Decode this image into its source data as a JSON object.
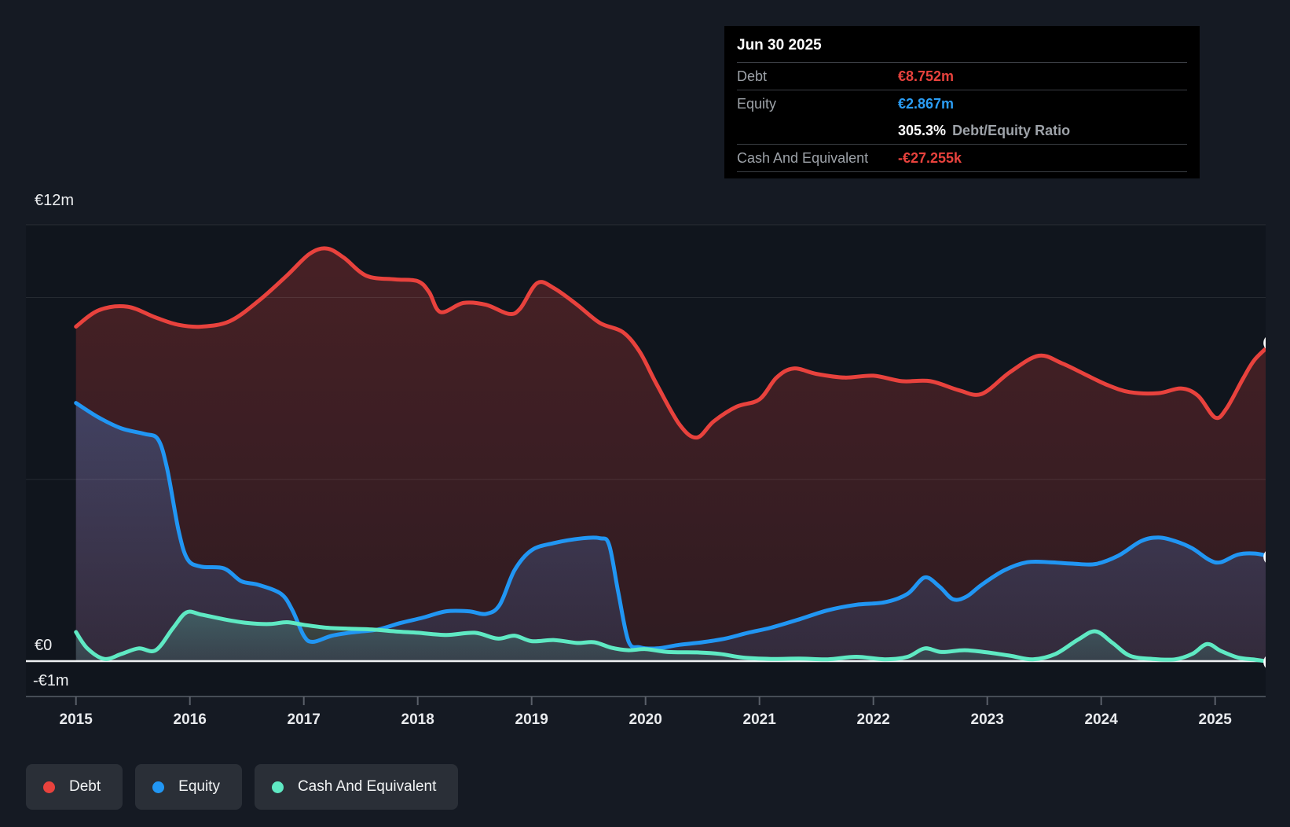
{
  "tooltip": {
    "date": "Jun 30 2025",
    "debt_label": "Debt",
    "debt_value": "€8.752m",
    "debt_color": "#e8423d",
    "equity_label": "Equity",
    "equity_value": "€2.867m",
    "equity_color": "#2b9df4",
    "ratio_value": "305.3%",
    "ratio_label": "Debt/Equity Ratio",
    "cash_label": "Cash And Equivalent",
    "cash_value": "-€27.255k",
    "cash_color": "#e8423d"
  },
  "legend": {
    "items": [
      {
        "label": "Debt",
        "color": "#e8423d"
      },
      {
        "label": "Equity",
        "color": "#2196f3"
      },
      {
        "label": "Cash And Equivalent",
        "color": "#5fe9c3"
      }
    ]
  },
  "x_axis": {
    "years": [
      "2015",
      "2016",
      "2017",
      "2018",
      "2019",
      "2020",
      "2021",
      "2022",
      "2023",
      "2024",
      "2025"
    ]
  },
  "chart_data": {
    "type": "area",
    "unit": "EUR millions",
    "x_range": [
      2015.0,
      2025.5
    ],
    "ylim": [
      -1,
      12
    ],
    "gridline_values": [
      12,
      10,
      5
    ],
    "zero_value": 0,
    "y_axis_labels": [
      {
        "text": "€12m",
        "value": 12
      },
      {
        "text": "€0",
        "value": 0
      },
      {
        "text": "-€1m",
        "value": -1
      }
    ],
    "legend_position": "bottom-left",
    "series": [
      {
        "id": "debt",
        "name": "Debt",
        "color": "#e8423d",
        "last_value_label": "€8.752m",
        "points": [
          [
            2015.0,
            9.2
          ],
          [
            2015.2,
            9.65
          ],
          [
            2015.45,
            9.75
          ],
          [
            2015.7,
            9.45
          ],
          [
            2015.9,
            9.25
          ],
          [
            2016.1,
            9.2
          ],
          [
            2016.35,
            9.35
          ],
          [
            2016.6,
            9.9
          ],
          [
            2016.85,
            10.6
          ],
          [
            2017.05,
            11.2
          ],
          [
            2017.2,
            11.35
          ],
          [
            2017.35,
            11.1
          ],
          [
            2017.55,
            10.6
          ],
          [
            2017.8,
            10.5
          ],
          [
            2018.0,
            10.45
          ],
          [
            2018.1,
            10.15
          ],
          [
            2018.2,
            9.6
          ],
          [
            2018.4,
            9.85
          ],
          [
            2018.6,
            9.8
          ],
          [
            2018.8,
            9.55
          ],
          [
            2018.9,
            9.7
          ],
          [
            2019.05,
            10.4
          ],
          [
            2019.2,
            10.25
          ],
          [
            2019.4,
            9.8
          ],
          [
            2019.6,
            9.3
          ],
          [
            2019.8,
            9.05
          ],
          [
            2019.95,
            8.5
          ],
          [
            2020.1,
            7.6
          ],
          [
            2020.3,
            6.5
          ],
          [
            2020.45,
            6.15
          ],
          [
            2020.6,
            6.6
          ],
          [
            2020.8,
            7.0
          ],
          [
            2021.0,
            7.2
          ],
          [
            2021.15,
            7.8
          ],
          [
            2021.3,
            8.05
          ],
          [
            2021.5,
            7.9
          ],
          [
            2021.75,
            7.8
          ],
          [
            2022.0,
            7.85
          ],
          [
            2022.25,
            7.7
          ],
          [
            2022.5,
            7.7
          ],
          [
            2022.75,
            7.45
          ],
          [
            2022.95,
            7.35
          ],
          [
            2023.2,
            7.95
          ],
          [
            2023.45,
            8.4
          ],
          [
            2023.65,
            8.2
          ],
          [
            2023.85,
            7.9
          ],
          [
            2024.05,
            7.6
          ],
          [
            2024.25,
            7.4
          ],
          [
            2024.5,
            7.37
          ],
          [
            2024.7,
            7.5
          ],
          [
            2024.85,
            7.3
          ],
          [
            2025.0,
            6.7
          ],
          [
            2025.1,
            6.95
          ],
          [
            2025.25,
            7.8
          ],
          [
            2025.35,
            8.3
          ],
          [
            2025.5,
            8.752
          ]
        ]
      },
      {
        "id": "equity",
        "name": "Equity",
        "color": "#2196f3",
        "last_value_label": "€2.867m",
        "points": [
          [
            2015.0,
            7.1
          ],
          [
            2015.2,
            6.7
          ],
          [
            2015.4,
            6.4
          ],
          [
            2015.6,
            6.25
          ],
          [
            2015.72,
            6.1
          ],
          [
            2015.8,
            5.3
          ],
          [
            2015.9,
            3.6
          ],
          [
            2015.98,
            2.8
          ],
          [
            2016.1,
            2.6
          ],
          [
            2016.3,
            2.55
          ],
          [
            2016.45,
            2.2
          ],
          [
            2016.6,
            2.1
          ],
          [
            2016.8,
            1.85
          ],
          [
            2016.9,
            1.4
          ],
          [
            2017.0,
            0.7
          ],
          [
            2017.08,
            0.53
          ],
          [
            2017.25,
            0.7
          ],
          [
            2017.45,
            0.8
          ],
          [
            2017.65,
            0.87
          ],
          [
            2017.85,
            1.05
          ],
          [
            2018.05,
            1.2
          ],
          [
            2018.25,
            1.37
          ],
          [
            2018.45,
            1.37
          ],
          [
            2018.6,
            1.3
          ],
          [
            2018.72,
            1.55
          ],
          [
            2018.85,
            2.5
          ],
          [
            2019.0,
            3.05
          ],
          [
            2019.2,
            3.25
          ],
          [
            2019.45,
            3.38
          ],
          [
            2019.6,
            3.38
          ],
          [
            2019.68,
            3.2
          ],
          [
            2019.76,
            1.9
          ],
          [
            2019.85,
            0.55
          ],
          [
            2019.95,
            0.38
          ],
          [
            2020.1,
            0.35
          ],
          [
            2020.3,
            0.45
          ],
          [
            2020.5,
            0.52
          ],
          [
            2020.7,
            0.62
          ],
          [
            2020.9,
            0.78
          ],
          [
            2021.1,
            0.92
          ],
          [
            2021.35,
            1.15
          ],
          [
            2021.6,
            1.4
          ],
          [
            2021.85,
            1.55
          ],
          [
            2022.1,
            1.62
          ],
          [
            2022.3,
            1.85
          ],
          [
            2022.45,
            2.3
          ],
          [
            2022.58,
            2.05
          ],
          [
            2022.7,
            1.7
          ],
          [
            2022.82,
            1.78
          ],
          [
            2022.95,
            2.1
          ],
          [
            2023.15,
            2.5
          ],
          [
            2023.35,
            2.72
          ],
          [
            2023.55,
            2.72
          ],
          [
            2023.75,
            2.68
          ],
          [
            2023.95,
            2.67
          ],
          [
            2024.15,
            2.9
          ],
          [
            2024.35,
            3.3
          ],
          [
            2024.5,
            3.4
          ],
          [
            2024.65,
            3.3
          ],
          [
            2024.8,
            3.1
          ],
          [
            2024.95,
            2.78
          ],
          [
            2025.05,
            2.72
          ],
          [
            2025.2,
            2.93
          ],
          [
            2025.35,
            2.96
          ],
          [
            2025.5,
            2.867
          ]
        ]
      },
      {
        "id": "cash",
        "name": "Cash And Equivalent",
        "color": "#5fe9c3",
        "last_value_label": "-€27.255k",
        "points": [
          [
            2015.0,
            0.8
          ],
          [
            2015.1,
            0.35
          ],
          [
            2015.25,
            0.06
          ],
          [
            2015.4,
            0.2
          ],
          [
            2015.55,
            0.35
          ],
          [
            2015.7,
            0.3
          ],
          [
            2015.85,
            0.9
          ],
          [
            2015.97,
            1.34
          ],
          [
            2016.1,
            1.28
          ],
          [
            2016.3,
            1.15
          ],
          [
            2016.5,
            1.05
          ],
          [
            2016.7,
            1.02
          ],
          [
            2016.85,
            1.07
          ],
          [
            2017.0,
            1.0
          ],
          [
            2017.2,
            0.92
          ],
          [
            2017.4,
            0.89
          ],
          [
            2017.6,
            0.87
          ],
          [
            2017.8,
            0.82
          ],
          [
            2018.0,
            0.78
          ],
          [
            2018.25,
            0.72
          ],
          [
            2018.5,
            0.78
          ],
          [
            2018.7,
            0.62
          ],
          [
            2018.85,
            0.7
          ],
          [
            2019.0,
            0.55
          ],
          [
            2019.2,
            0.58
          ],
          [
            2019.4,
            0.5
          ],
          [
            2019.55,
            0.52
          ],
          [
            2019.7,
            0.37
          ],
          [
            2019.85,
            0.3
          ],
          [
            2020.0,
            0.33
          ],
          [
            2020.2,
            0.25
          ],
          [
            2020.45,
            0.24
          ],
          [
            2020.65,
            0.2
          ],
          [
            2020.85,
            0.1
          ],
          [
            2021.1,
            0.06
          ],
          [
            2021.35,
            0.07
          ],
          [
            2021.6,
            0.05
          ],
          [
            2021.85,
            0.12
          ],
          [
            2022.1,
            0.05
          ],
          [
            2022.3,
            0.12
          ],
          [
            2022.45,
            0.35
          ],
          [
            2022.6,
            0.25
          ],
          [
            2022.8,
            0.3
          ],
          [
            2023.0,
            0.24
          ],
          [
            2023.2,
            0.15
          ],
          [
            2023.4,
            0.05
          ],
          [
            2023.6,
            0.2
          ],
          [
            2023.8,
            0.6
          ],
          [
            2023.95,
            0.82
          ],
          [
            2024.1,
            0.5
          ],
          [
            2024.25,
            0.15
          ],
          [
            2024.45,
            0.06
          ],
          [
            2024.65,
            0.05
          ],
          [
            2024.8,
            0.2
          ],
          [
            2024.93,
            0.47
          ],
          [
            2025.05,
            0.28
          ],
          [
            2025.2,
            0.1
          ],
          [
            2025.35,
            0.04
          ],
          [
            2025.5,
            -0.027
          ]
        ]
      }
    ]
  }
}
